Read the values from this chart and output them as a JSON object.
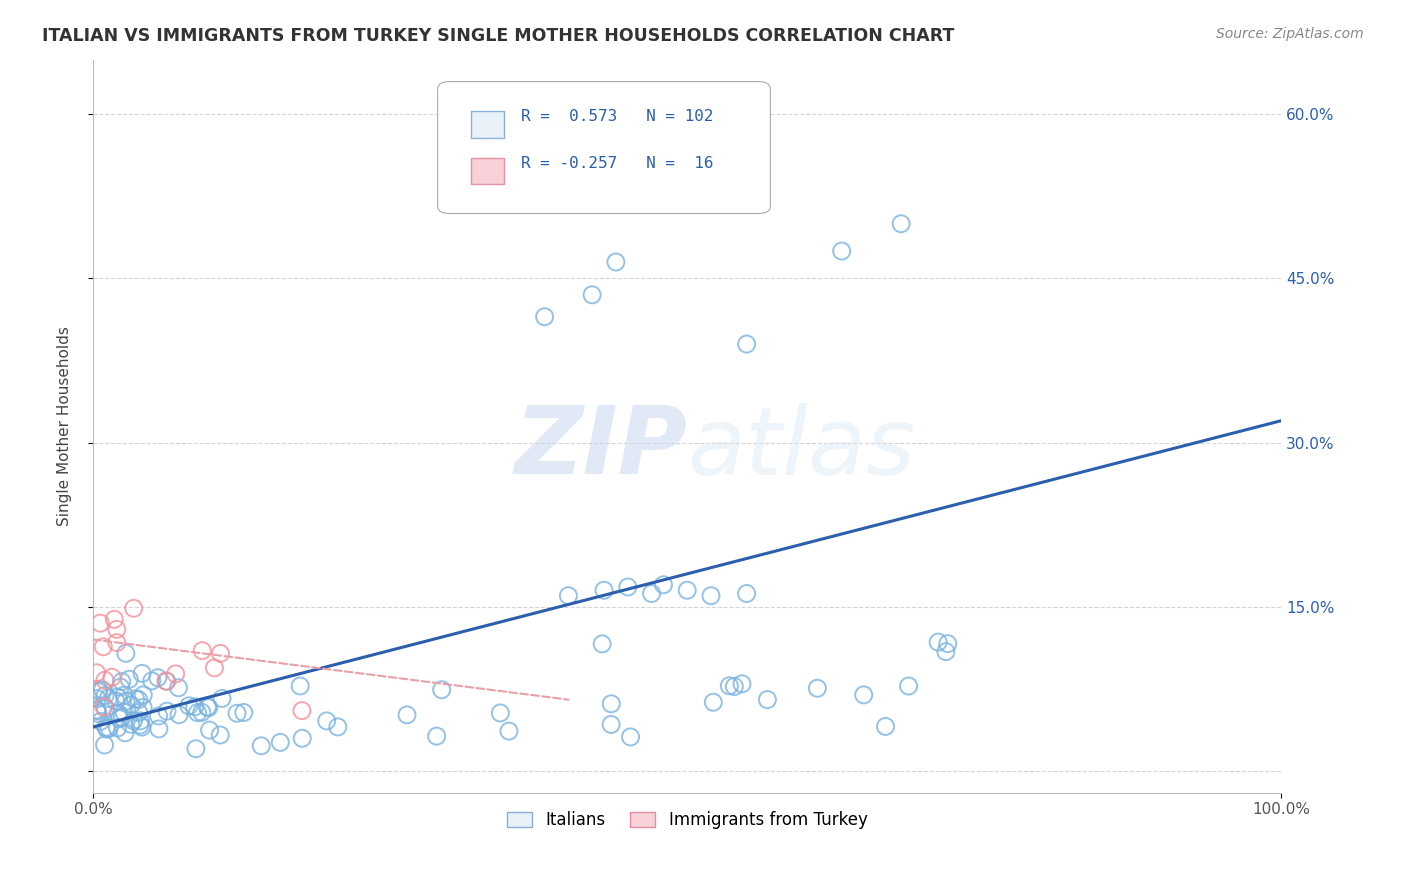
{
  "title": "ITALIAN VS IMMIGRANTS FROM TURKEY SINGLE MOTHER HOUSEHOLDS CORRELATION CHART",
  "source": "Source: ZipAtlas.com",
  "ylabel": "Single Mother Households",
  "watermark_zip": "ZIP",
  "watermark_atlas": "atlas",
  "xlim": [
    0.0,
    1.0
  ],
  "ylim": [
    -0.02,
    0.65
  ],
  "y_ticks": [
    0.0,
    0.15,
    0.3,
    0.45,
    0.6
  ],
  "y_tick_labels_right": [
    "",
    "15.0%",
    "30.0%",
    "45.0%",
    "60.0%"
  ],
  "italian_color": "#7ab3e0",
  "turkey_color": "#f4909a",
  "italian_line_color": "#2b5fad",
  "turkey_line_color": "#e8a0a8",
  "background_color": "#ffffff",
  "grid_color": "#d0d0d0",
  "legend_box_color": "#e8f0f8",
  "legend_pink_color": "#f8d0d8",
  "legend_text_color": "#2b5fad",
  "title_color": "#333333",
  "source_color": "#888888",
  "line_y0": 0.04,
  "line_y1": 0.32
}
